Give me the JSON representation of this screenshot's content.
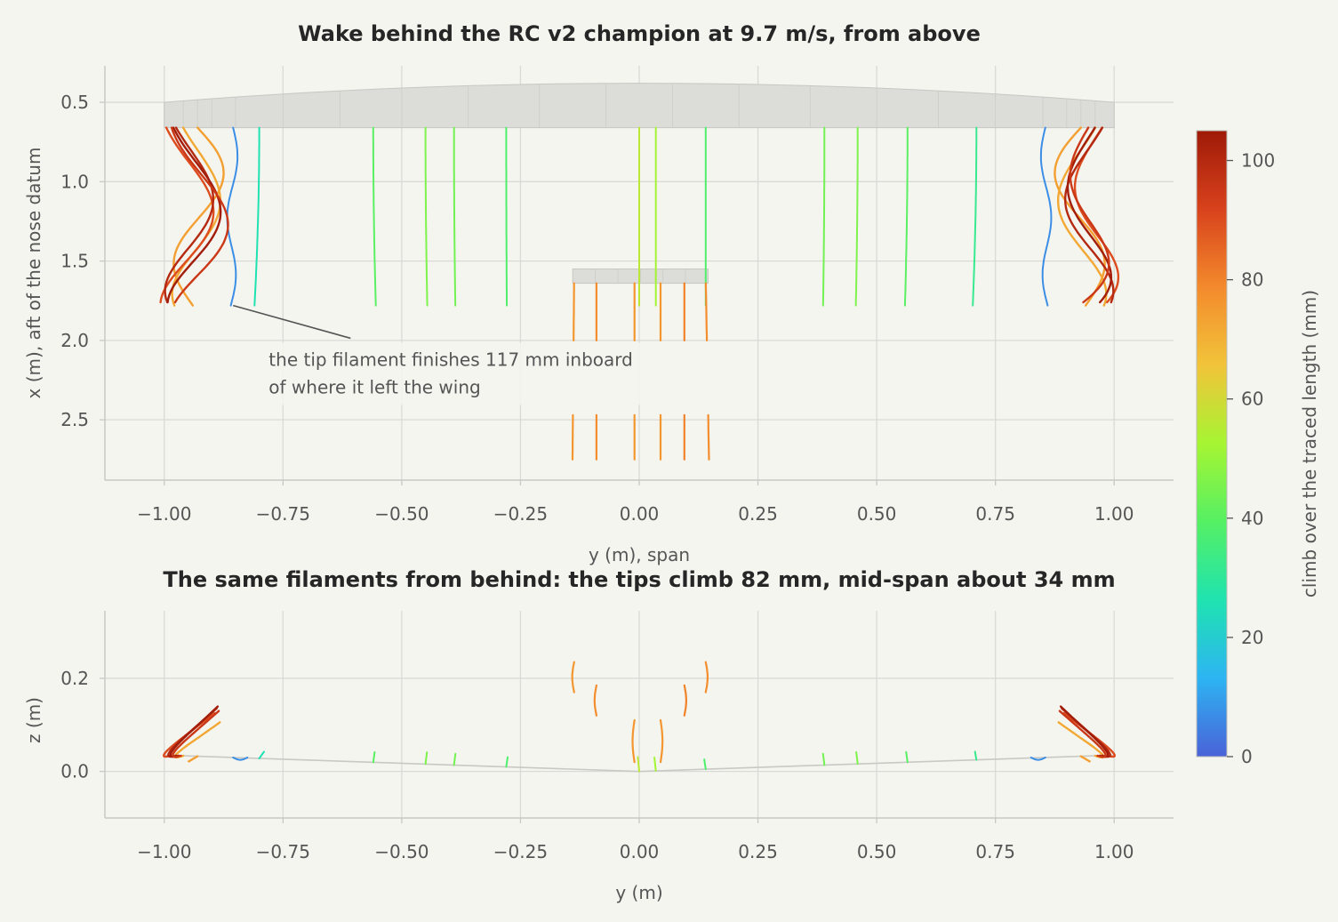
{
  "chart_data": [
    {
      "type": "line",
      "title": "Wake behind the RC v2 champion at 9.7 m/s, from above",
      "xlabel": "y (m), span",
      "ylabel": "x (m), aft of the nose datum",
      "xlim": [
        -1.125,
        1.125
      ],
      "ylim": [
        2.88,
        0.27
      ],
      "y_inverted": true,
      "xticks": [
        "−1.00",
        "−0.75",
        "−0.50",
        "−0.25",
        "0.00",
        "0.25",
        "0.50",
        "0.75",
        "1.00"
      ],
      "xtick_values": [
        -1.0,
        -0.75,
        -0.5,
        -0.25,
        0.0,
        0.25,
        0.5,
        0.75,
        1.0
      ],
      "yticks": [
        "0.5",
        "1.0",
        "1.5",
        "2.0",
        "2.5"
      ],
      "ytick_values": [
        0.5,
        1.0,
        1.5,
        2.0,
        2.5
      ],
      "grid": true,
      "wing": {
        "span": [
          -1.0,
          1.0
        ],
        "leading_edge_root": 0.38,
        "leading_edge_tip": 0.5,
        "trailing_edge": 0.66,
        "color": "#dcddd8"
      },
      "tail": {
        "span": [
          -0.14,
          0.145
        ],
        "leading_edge": 1.55,
        "trailing_edge": 1.64,
        "color": "#dcddd8"
      },
      "annotation": {
        "lines": [
          "the tip filament finishes 117 mm inboard",
          "of where it left the wing"
        ],
        "points_to": [
          -0.855,
          1.78
        ],
        "text_at": [
          -0.78,
          2.16
        ]
      },
      "filaments": [
        {
          "y0": 0.0,
          "climb": 56,
          "x_end": 1.78
        },
        {
          "y0": 0.035,
          "climb": 52,
          "x_end": 1.78
        },
        {
          "y0": 0.14,
          "climb": 38,
          "x_end": 1.78
        },
        {
          "y0": -0.28,
          "climb": 38,
          "x_end": 1.78
        },
        {
          "y0": -0.39,
          "climb": 44,
          "x_end": 1.78
        },
        {
          "y0": -0.45,
          "climb": 46,
          "x_end": 1.78
        },
        {
          "y0": -0.56,
          "climb": 40,
          "x_end": 1.78
        },
        {
          "y0": 0.39,
          "climb": 44,
          "x_end": 1.78
        },
        {
          "y0": 0.46,
          "climb": 46,
          "x_end": 1.78
        },
        {
          "y0": 0.565,
          "climb": 40,
          "x_end": 1.78
        },
        {
          "y0": 0.71,
          "climb": 32,
          "x_end": 1.78
        },
        {
          "y0": -0.8,
          "climb": 26,
          "x_end": 1.78
        },
        {
          "y0": -0.855,
          "climb": 7,
          "x_end": 1.78
        },
        {
          "y0": 0.855,
          "climb": 7,
          "x_end": 1.78
        },
        {
          "y0": -0.93,
          "climb": 74,
          "x_end": 1.78
        },
        {
          "y0": -0.96,
          "climb": 72,
          "x_end": 1.78
        },
        {
          "y0": -0.985,
          "climb": 90,
          "x_end": 1.76
        },
        {
          "y0": -0.975,
          "climb": 100,
          "x_end": 1.76
        },
        {
          "y0": -0.97,
          "climb": 104,
          "x_end": 1.76
        },
        {
          "y0": -0.965,
          "climb": 95,
          "x_end": 1.76
        },
        {
          "y0": 0.93,
          "climb": 74,
          "x_end": 1.78
        },
        {
          "y0": 0.96,
          "climb": 72,
          "x_end": 1.78
        },
        {
          "y0": 0.985,
          "climb": 90,
          "x_end": 1.76
        },
        {
          "y0": 0.975,
          "climb": 100,
          "x_end": 1.76
        },
        {
          "y0": 0.97,
          "climb": 104,
          "x_end": 1.76
        },
        {
          "y0": 0.965,
          "climb": 95,
          "x_end": 1.76
        }
      ],
      "tail_filaments": [
        {
          "y0": -0.137,
          "climb": 76
        },
        {
          "y0": -0.09,
          "climb": 78
        },
        {
          "y0": -0.01,
          "climb": 76
        },
        {
          "y0": 0.045,
          "climb": 76
        },
        {
          "y0": 0.095,
          "climb": 80
        },
        {
          "y0": 0.14,
          "climb": 78
        }
      ]
    },
    {
      "type": "line",
      "title": "The same filaments from behind: the tips climb 82 mm, mid-span about 34 mm",
      "xlabel": "y (m)",
      "ylabel": "z (m)",
      "xlim": [
        -1.125,
        1.125
      ],
      "ylim": [
        -0.1,
        0.345
      ],
      "xticks": [
        "−1.00",
        "−0.75",
        "−0.50",
        "−0.25",
        "0.00",
        "0.25",
        "0.50",
        "0.75",
        "1.00"
      ],
      "xtick_values": [
        -1.0,
        -0.75,
        -0.5,
        -0.25,
        0.0,
        0.25,
        0.5,
        0.75,
        1.0
      ],
      "yticks": [
        "0.0",
        "0.2"
      ],
      "ytick_values": [
        0.0,
        0.2
      ],
      "grid": true,
      "wing_outline": {
        "y": [
          -1.0,
          0.0,
          1.0
        ],
        "z": [
          0.035,
          0.0,
          0.035
        ],
        "color": "#c8c8c4"
      }
    }
  ],
  "colorbar": {
    "label": "climb over the traced length (mm)",
    "range": [
      0,
      105
    ],
    "ticks": [
      "0",
      "20",
      "40",
      "60",
      "80",
      "100"
    ],
    "tick_values": [
      0,
      20,
      40,
      60,
      80,
      100
    ],
    "colormap": "turbo",
    "stops": [
      "#4a62d8",
      "#2db4f2",
      "#1fe3b0",
      "#55f064",
      "#a6f532",
      "#f2c43a",
      "#f38a2c",
      "#d8421c",
      "#9e1a08"
    ]
  }
}
